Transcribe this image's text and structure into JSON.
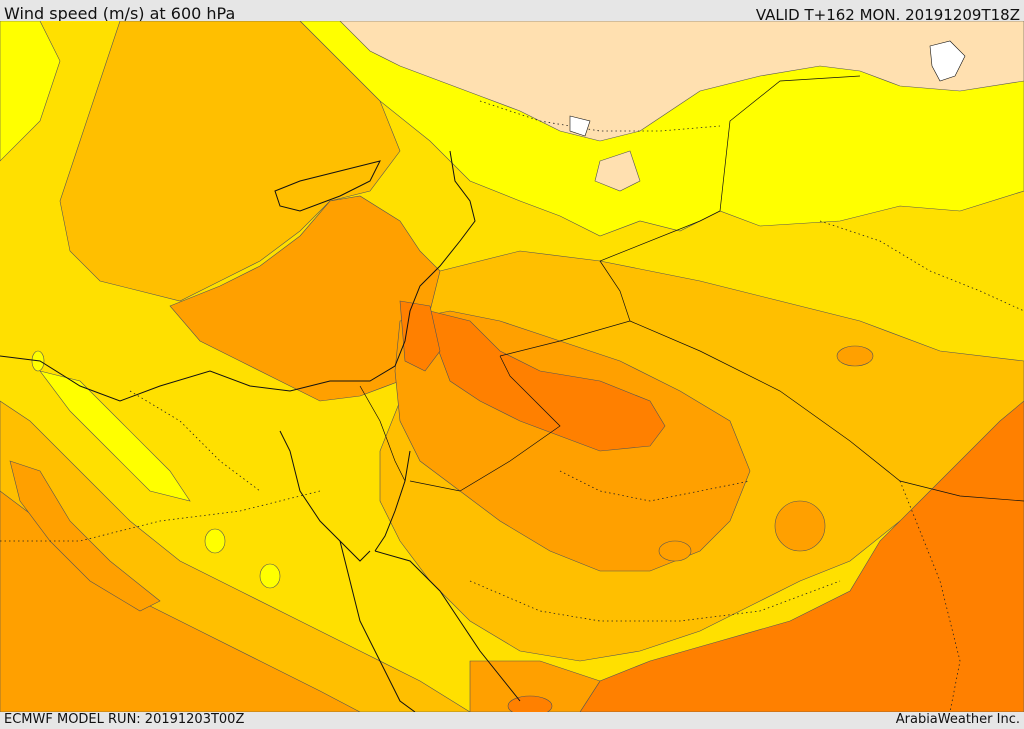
{
  "header": {
    "title": "Wind speed (m/s) at 600 hPa",
    "valid": "VALID T+162 MON. 20191209T18Z"
  },
  "footer": {
    "model_run": "ECMWF MODEL RUN: 20191203T00Z",
    "credit": "ArabiaWeather Inc."
  },
  "colors": {
    "light_yellow": "#ffff00",
    "yellow": "#ffe000",
    "light_orange": "#ffbf00",
    "orange": "#ffa000",
    "dark_orange": "#ff8000",
    "pale_peach": "#ffe0b0"
  }
}
